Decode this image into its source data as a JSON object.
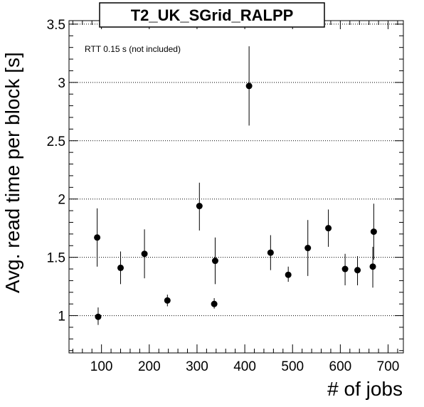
{
  "chart_data": {
    "type": "scatter",
    "title": "T2_UK_SGrid_RALPP",
    "xlabel": "# of jobs",
    "ylabel": "Avg. read time per block [s]",
    "annotation": "RTT 0.15 s (not included)",
    "xlim": [
      32,
      732
    ],
    "ylim": [
      0.68,
      3.53
    ],
    "xticks": [
      100,
      200,
      300,
      400,
      500,
      600,
      700
    ],
    "yticks": [
      1,
      1.5,
      2,
      2.5,
      3,
      3.5
    ],
    "xtick_labels": [
      "100",
      "200",
      "300",
      "400",
      "500",
      "600",
      "700"
    ],
    "ytick_labels": [
      "1",
      "1.5",
      "2",
      "2.5",
      "3",
      "3.5"
    ],
    "grid": "horizontal dotted at major y ticks",
    "marker_color": "#000000",
    "points": [
      {
        "x": 91,
        "y": 1.67,
        "yerr_low": 1.42,
        "yerr_high": 1.92
      },
      {
        "x": 93,
        "y": 0.99,
        "yerr_low": 0.92,
        "yerr_high": 1.07
      },
      {
        "x": 140,
        "y": 1.41,
        "yerr_low": 1.27,
        "yerr_high": 1.55
      },
      {
        "x": 190,
        "y": 1.53,
        "yerr_low": 1.32,
        "yerr_high": 1.74
      },
      {
        "x": 238,
        "y": 1.13,
        "yerr_low": 1.08,
        "yerr_high": 1.18
      },
      {
        "x": 305,
        "y": 1.94,
        "yerr_low": 1.73,
        "yerr_high": 2.14
      },
      {
        "x": 336,
        "y": 1.1,
        "yerr_low": 1.06,
        "yerr_high": 1.15
      },
      {
        "x": 338,
        "y": 1.47,
        "yerr_low": 1.27,
        "yerr_high": 1.67
      },
      {
        "x": 409,
        "y": 2.97,
        "yerr_low": 2.63,
        "yerr_high": 3.31
      },
      {
        "x": 454,
        "y": 1.54,
        "yerr_low": 1.39,
        "yerr_high": 1.69
      },
      {
        "x": 491,
        "y": 1.35,
        "yerr_low": 1.29,
        "yerr_high": 1.42
      },
      {
        "x": 532,
        "y": 1.58,
        "yerr_low": 1.34,
        "yerr_high": 1.82
      },
      {
        "x": 575,
        "y": 1.75,
        "yerr_low": 1.59,
        "yerr_high": 1.91
      },
      {
        "x": 610,
        "y": 1.4,
        "yerr_low": 1.26,
        "yerr_high": 1.53
      },
      {
        "x": 636,
        "y": 1.39,
        "yerr_low": 1.26,
        "yerr_high": 1.51
      },
      {
        "x": 668,
        "y": 1.42,
        "yerr_low": 1.24,
        "yerr_high": 1.59
      },
      {
        "x": 670,
        "y": 1.72,
        "yerr_low": 1.48,
        "yerr_high": 1.96
      }
    ]
  }
}
